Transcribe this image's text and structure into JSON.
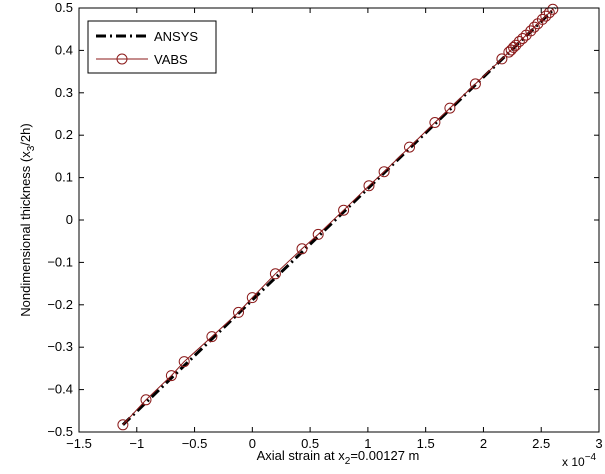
{
  "chart_data": {
    "type": "line",
    "xlabel": "Axial strain at x",
    "xlabel_sub": "2",
    "xlabel_tail": "=0.00127 m",
    "ylabel": "Nondimensional thickness (x",
    "ylabel_sub": "3",
    "ylabel_tail": "/2h)",
    "x_multiplier_base": "x 10",
    "x_multiplier_exp": "−4",
    "xlim": [
      -1.5,
      3
    ],
    "ylim": [
      -0.5,
      0.5
    ],
    "xticks": [
      -1.5,
      -1,
      -0.5,
      0,
      0.5,
      1,
      1.5,
      2,
      2.5,
      3
    ],
    "xtick_labels": [
      "−1.5",
      "−1",
      "−0.5",
      "0",
      "0.5",
      "1",
      "1.5",
      "2",
      "2.5",
      "3"
    ],
    "yticks": [
      -0.5,
      -0.4,
      -0.3,
      -0.2,
      -0.1,
      0,
      0.1,
      0.2,
      0.3,
      0.4,
      0.5
    ],
    "ytick_labels": [
      "−0.5",
      "−0.4",
      "−0.3",
      "−0.2",
      "−0.1",
      "0",
      "0.1",
      "0.2",
      "0.3",
      "0.4",
      "0.5"
    ],
    "grid": false,
    "legend_position": "top-left",
    "series": [
      {
        "name": "ANSYS",
        "color": "#000000",
        "style": "dash-dot",
        "marker": "none",
        "x": [
          -1.12,
          2.62
        ],
        "y": [
          -0.483,
          0.5
        ]
      },
      {
        "name": "VABS",
        "color": "#8b1a1a",
        "style": "solid",
        "marker": "circle",
        "x": [
          -1.12,
          -0.92,
          -0.7,
          -0.35,
          -0.59,
          -0.12,
          0.0,
          0.2,
          0.43,
          0.57,
          0.79,
          1.01,
          1.14,
          1.36,
          1.58,
          1.71,
          1.93,
          2.16,
          2.22,
          2.24,
          2.26,
          2.28,
          2.31,
          2.34,
          2.37,
          2.41,
          2.44,
          2.47,
          2.51,
          2.54,
          2.57,
          2.6
        ],
        "y": [
          -0.483,
          -0.424,
          -0.367,
          -0.275,
          -0.334,
          -0.218,
          -0.183,
          -0.127,
          -0.068,
          -0.034,
          0.023,
          0.081,
          0.114,
          0.172,
          0.23,
          0.264,
          0.321,
          0.38,
          0.396,
          0.401,
          0.407,
          0.412,
          0.421,
          0.428,
          0.436,
          0.446,
          0.455,
          0.463,
          0.473,
          0.481,
          0.489,
          0.497
        ]
      }
    ]
  }
}
